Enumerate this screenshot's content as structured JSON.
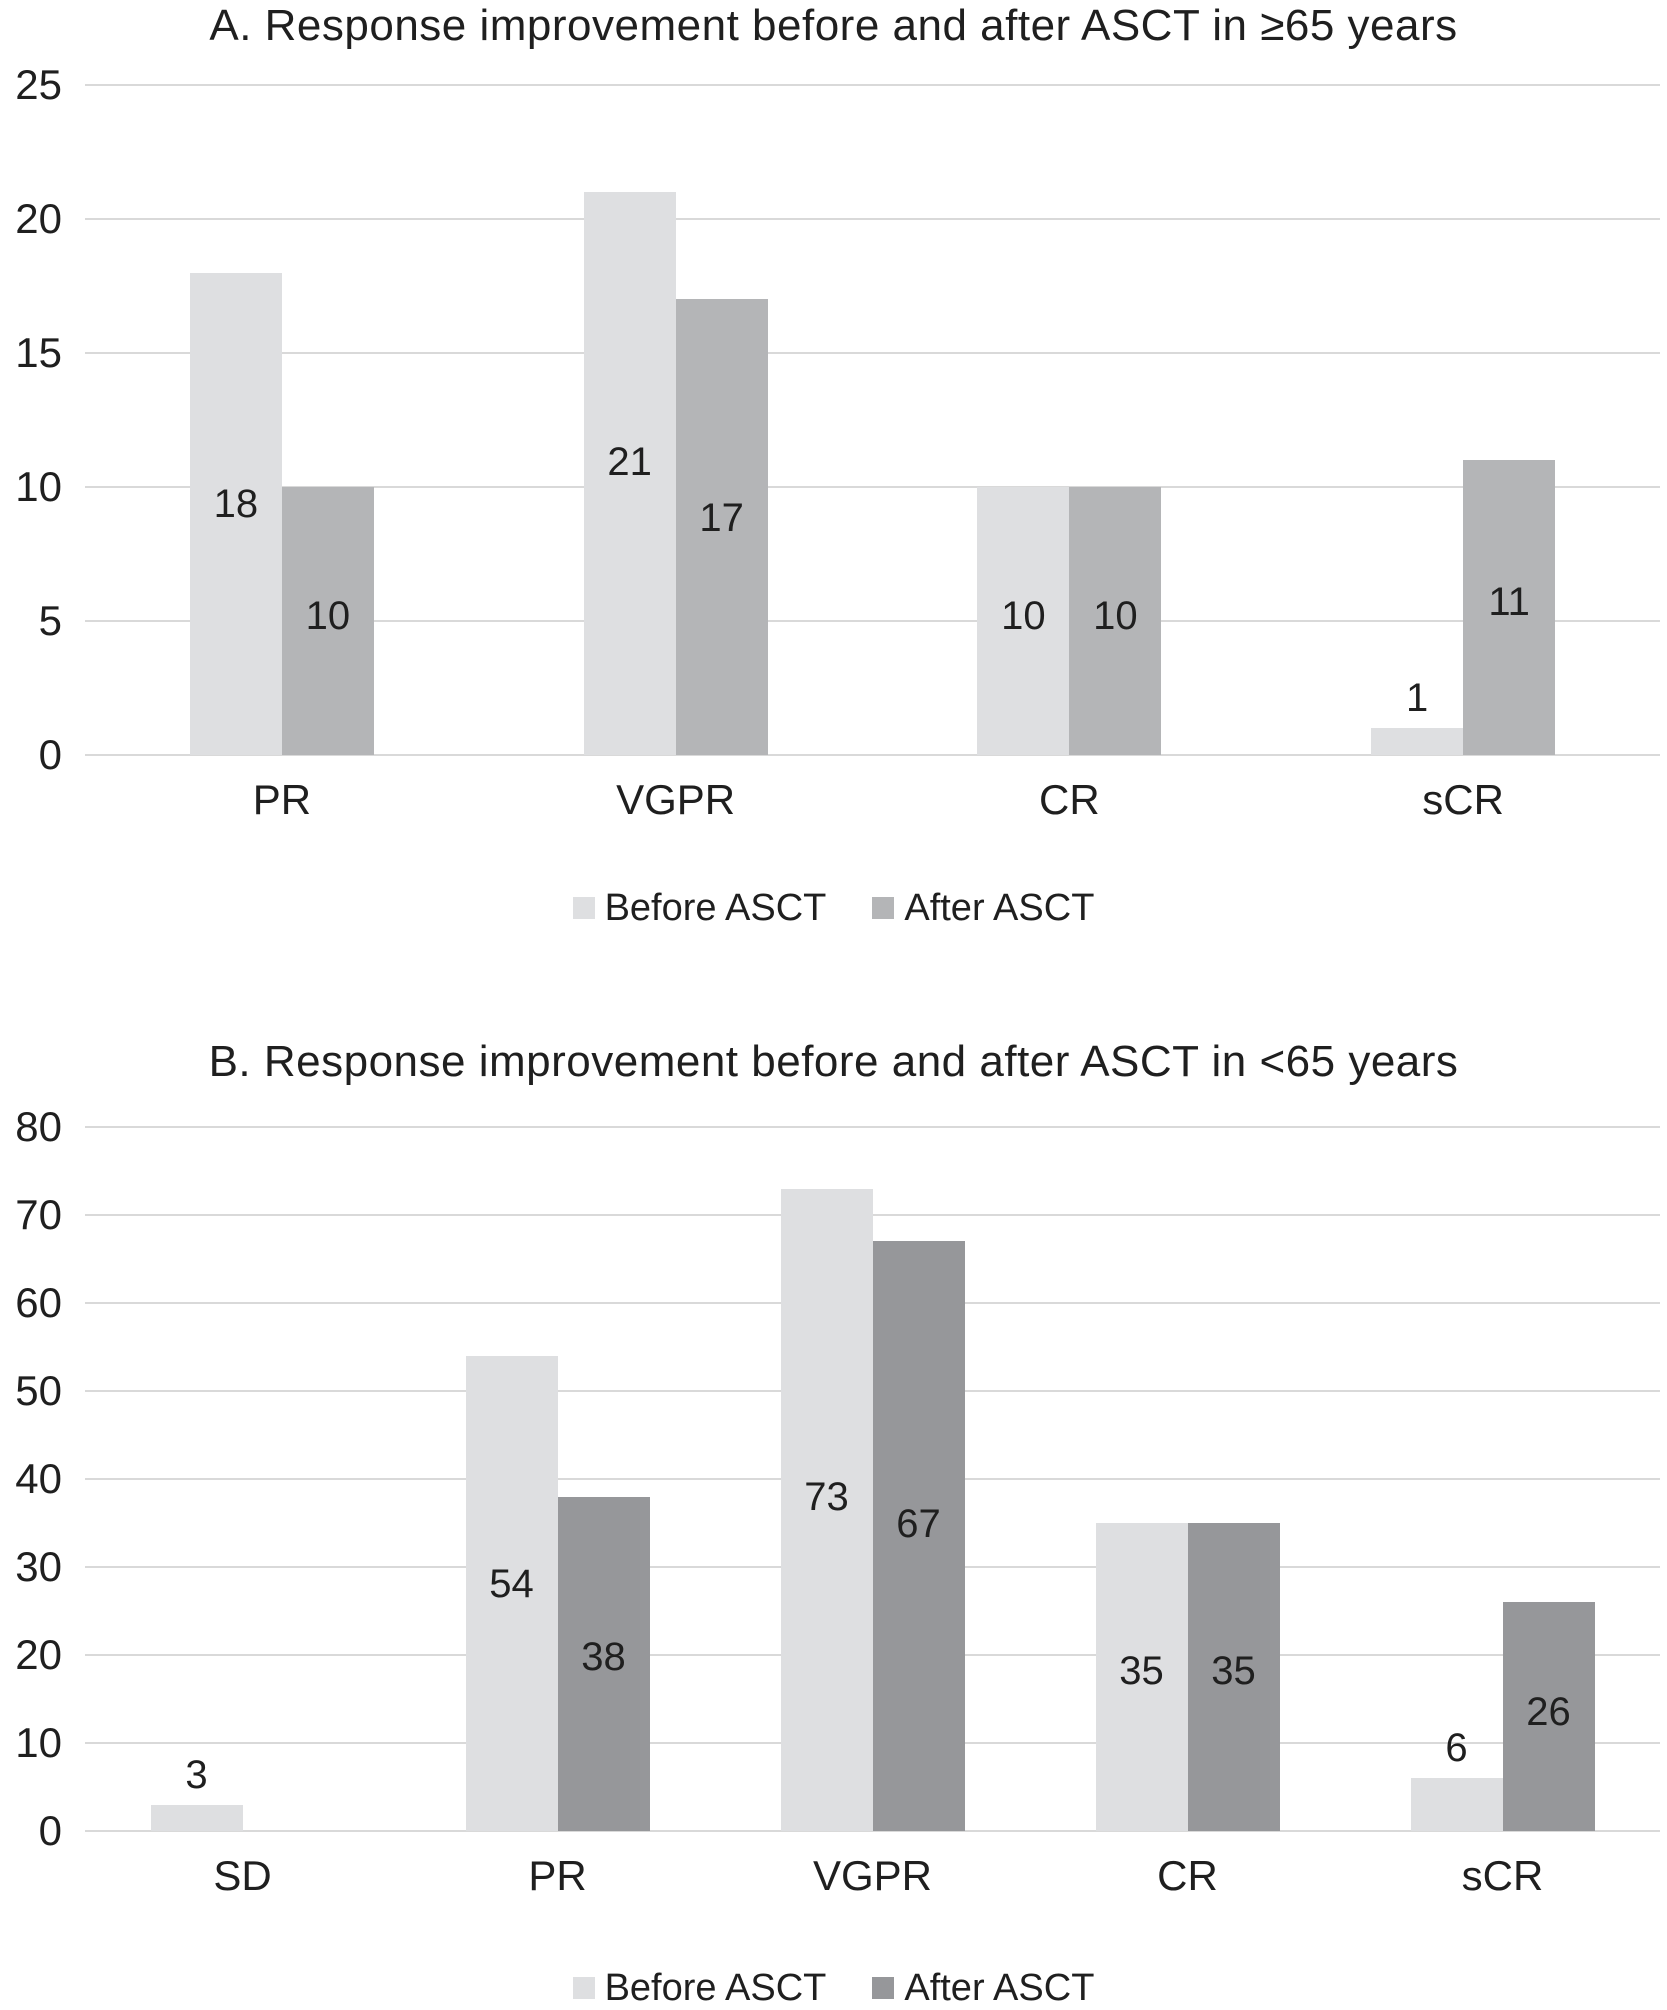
{
  "colors": {
    "before": "#dedfe1",
    "after_a": "#b4b5b7",
    "after_b": "#96979a",
    "gridline": "#d9d9d9",
    "text": "#1f1f1f"
  },
  "chart_data": [
    {
      "type": "bar",
      "panel": "A",
      "title": "A. Response improvement before and after ASCT in ≥65 years",
      "categories": [
        "PR",
        "VGPR",
        "CR",
        "sCR"
      ],
      "series": [
        {
          "name": "Before ASCT",
          "values": [
            18,
            21,
            10,
            1
          ]
        },
        {
          "name": "After ASCT",
          "values": [
            10,
            17,
            10,
            11
          ]
        }
      ],
      "ylim": [
        0,
        25
      ],
      "yticks": [
        0,
        5,
        10,
        15,
        20,
        25
      ],
      "grid": true,
      "legend_position": "bottom",
      "xlabel": "",
      "ylabel": ""
    },
    {
      "type": "bar",
      "panel": "B",
      "title": "B. Response improvement before and after ASCT in <65 years",
      "categories": [
        "SD",
        "PR",
        "VGPR",
        "CR",
        "sCR"
      ],
      "series": [
        {
          "name": "Before ASCT",
          "values": [
            3,
            54,
            73,
            35,
            6
          ]
        },
        {
          "name": "After ASCT",
          "values": [
            0,
            38,
            67,
            35,
            26
          ]
        }
      ],
      "ylim": [
        0,
        80
      ],
      "yticks": [
        0,
        10,
        20,
        30,
        40,
        50,
        60,
        70,
        80
      ],
      "grid": true,
      "legend_position": "bottom",
      "xlabel": "",
      "ylabel": ""
    }
  ]
}
